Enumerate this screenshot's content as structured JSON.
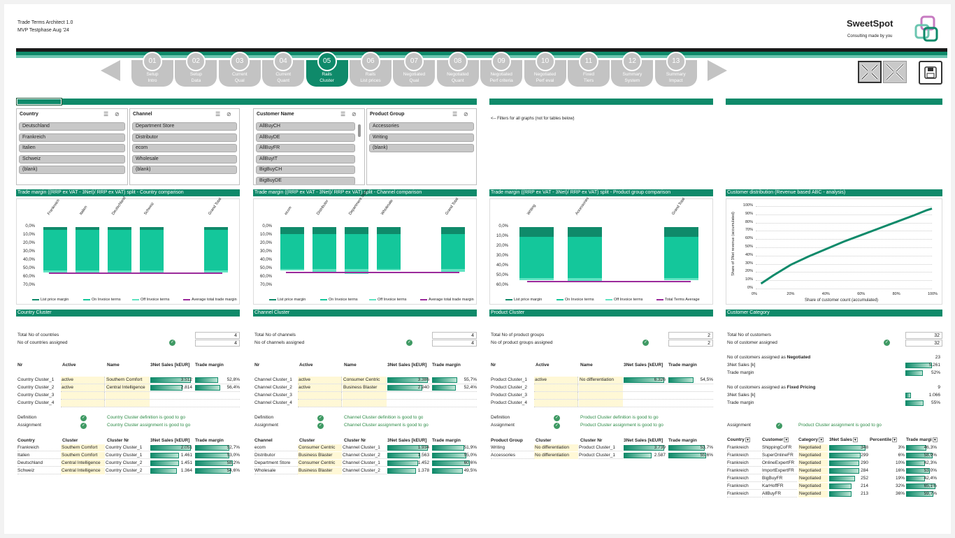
{
  "app": {
    "title": "Trade Terms Architect 1.0",
    "subtitle": "MVP Testphase Aug '24"
  },
  "brand": {
    "name": "SweetSpot",
    "tagline": "Consulting made by you",
    "accent": "#0f8a6a"
  },
  "steps": [
    {
      "num": "01",
      "label": "Setup\nIntro"
    },
    {
      "num": "02",
      "label": "Setup\nData"
    },
    {
      "num": "03",
      "label": "Current\nQual"
    },
    {
      "num": "04",
      "label": "Current\nQuant"
    },
    {
      "num": "05",
      "label": "Rails\nCluster",
      "active": true
    },
    {
      "num": "06",
      "label": "Rails\nList prices"
    },
    {
      "num": "07",
      "label": "Negotiated\nQual"
    },
    {
      "num": "08",
      "label": "Negotiated\nQuant"
    },
    {
      "num": "09",
      "label": "Negotiated\nPerf criteria"
    },
    {
      "num": "10",
      "label": "Negotiated\nPerf eval"
    },
    {
      "num": "11",
      "label": "Fixed\nTiers"
    },
    {
      "num": "12",
      "label": "Summary\nSystem"
    },
    {
      "num": "13",
      "label": "Summary\nImpact"
    }
  ],
  "slicers": {
    "country": {
      "title": "Country",
      "items": [
        "Deutschland",
        "Frankreich",
        "Italien",
        "Schweiz",
        "(blank)"
      ]
    },
    "channel": {
      "title": "Channel",
      "items": [
        "Department Store",
        "Distributor",
        "ecom",
        "Wholesale",
        "(blank)"
      ]
    },
    "customer": {
      "title": "Customer Name",
      "items": [
        "AllBuyCH",
        "AllBuyDE",
        "AllBuyFR",
        "AllBuyIT",
        "BigBuyCH",
        "BigBuyDE"
      ]
    },
    "product": {
      "title": "Product Group",
      "items": [
        "Accessories",
        "Writing",
        "(blank)"
      ]
    }
  },
  "filter_note": "<-- Filters for all graphs (not for tables below)",
  "chart_titles": {
    "country": "Trade margin ((RRP ex VAT - 3Net)/ RRP ex VAT) split - Country comparison",
    "channel": "Trade margin ((RRP ex VAT - 3Net)/ RRP ex VAT) split - Channel comparison",
    "product": "Trade margin ((RRP ex VAT - 3Net)/ RRP ex VAT) split - Product group comparison",
    "customer": "Customer distribution (Revenue based ABC - analysis)"
  },
  "chart_data": [
    {
      "type": "bar",
      "name": "country",
      "categories": [
        "Frankreich",
        "Italien",
        "Deutschland",
        "Schweiz",
        "",
        "Grand Total"
      ],
      "y_ticks": [
        "0,0%",
        "10,0%",
        "20,0%",
        "30,0%",
        "40,0%",
        "50,0%",
        "60,0%",
        "70,0%"
      ],
      "ylim": [
        0,
        70
      ],
      "series": [
        {
          "name": "List price margin",
          "values": [
            3,
            3,
            3,
            3,
            null,
            3
          ]
        },
        {
          "name": "On Invoice terms",
          "values": [
            49,
            49,
            49,
            49,
            null,
            49
          ]
        },
        {
          "name": "Off Invoice terms",
          "values": [
            2,
            2,
            4,
            2,
            null,
            2
          ]
        },
        {
          "name": "Average total trade margin",
          "values": [
            54,
            54,
            54,
            54,
            null,
            54
          ]
        }
      ],
      "legend": [
        "List price margin",
        "On Invoice terms",
        "Off Invoice terms",
        "Average total trade margin"
      ]
    },
    {
      "type": "bar",
      "name": "channel",
      "categories": [
        "ecom",
        "Distributor",
        "Department Store",
        "Wholesale",
        "",
        "Grand Total"
      ],
      "y_ticks": [
        "0,0%",
        "10,0%",
        "20,0%",
        "30,0%",
        "40,0%",
        "50,0%",
        "60,0%",
        "70,0%"
      ],
      "ylim": [
        0,
        70
      ],
      "series": [
        {
          "name": "List price margin",
          "values": [
            8,
            8,
            8,
            8,
            null,
            8
          ]
        },
        {
          "name": "On Invoice terms",
          "values": [
            42,
            42,
            42,
            42,
            null,
            42
          ]
        },
        {
          "name": "Off Invoice terms",
          "values": [
            2,
            4,
            6,
            2,
            null,
            3
          ]
        },
        {
          "name": "Average total trade margin",
          "values": [
            53,
            53,
            53,
            53,
            null,
            53
          ]
        }
      ],
      "legend": [
        "List price margin",
        "On Invoice terms",
        "Off Invoice terms",
        "Average total trade margin"
      ]
    },
    {
      "type": "bar",
      "name": "product",
      "categories": [
        "Writing",
        "Accessories",
        "",
        "Grand Total"
      ],
      "y_ticks": [
        "0,0%",
        "10,0%",
        "20,0%",
        "30,0%",
        "40,0%",
        "50,0%",
        "60,0%"
      ],
      "ylim": [
        0,
        60
      ],
      "series": [
        {
          "name": "List price margin",
          "values": [
            10,
            10,
            null,
            10
          ]
        },
        {
          "name": "On Invoice terms",
          "values": [
            42,
            42,
            null,
            42
          ]
        },
        {
          "name": "Off Invoice terms",
          "values": [
            2,
            3,
            null,
            2
          ]
        },
        {
          "name": "Total Terms Average",
          "values": [
            55,
            55,
            null,
            55
          ]
        }
      ],
      "legend": [
        "List price margin",
        "On Invoice terms",
        "Off Invoice terms",
        "Total Terms Average"
      ]
    },
    {
      "type": "line",
      "name": "customer",
      "x_ticks": [
        "0%",
        "20%",
        "40%",
        "60%",
        "80%",
        "100%"
      ],
      "y_ticks": [
        "0%",
        "10%",
        "20%",
        "30%",
        "40%",
        "50%",
        "60%",
        "70%",
        "80%",
        "90%",
        "100%"
      ],
      "xlabel": "Share of customer count (accumulated)",
      "ylabel": "Share of 3Net revenue (accumulated)",
      "x": [
        3,
        10,
        20,
        30,
        40,
        50,
        60,
        70,
        80,
        90,
        97,
        100
      ],
      "y": [
        6,
        16,
        29,
        39,
        48,
        57,
        65,
        73,
        81,
        89,
        95,
        97
      ]
    }
  ],
  "sections": {
    "country": {
      "title": "Country Cluster",
      "total_label": "Total No of countries",
      "total": "4",
      "assigned_label": "No of countries assigned",
      "assigned": "4",
      "headers": [
        "Nr",
        "Active",
        "Name",
        "3Net Sales [kEUR]",
        "Trade margin"
      ],
      "rows": [
        {
          "nr": "Country Cluster_1",
          "active": "active",
          "name": "Southern Comfort",
          "sales": "3.512",
          "sales_frac": 1.0,
          "margin": "52,8%",
          "margin_frac": 0.93
        },
        {
          "nr": "Country Cluster_2",
          "active": "active",
          "name": "Central Intelligence",
          "sales": "2.814",
          "sales_frac": 0.8,
          "margin": "56,4%",
          "margin_frac": 1.0
        },
        {
          "nr": "Country Cluster_3",
          "active": "",
          "name": "",
          "sales": "",
          "margin": ""
        },
        {
          "nr": "Country Cluster_4",
          "active": "",
          "name": "",
          "sales": "",
          "margin": ""
        }
      ],
      "def_label": "Definition",
      "def_msg": "Country Cluster definition is good to go",
      "asg_label": "Assignment",
      "asg_msg": "Country Cluster assignment is good to go",
      "map_headers": [
        "Country",
        "Cluster",
        "Cluster Nr",
        "3Net Sales [kEUR]",
        "Trade margin"
      ],
      "map_rows": [
        {
          "a": "Frankreich",
          "b": "Southern Comfort",
          "c": "Country Cluster_1",
          "s": "2.051",
          "sf": 1.0,
          "m": "52,7%",
          "mf": 0.9
        },
        {
          "a": "Italien",
          "b": "Southern Comfort",
          "c": "Country Cluster_1",
          "s": "1.461",
          "sf": 0.71,
          "m": "53,0%",
          "mf": 0.91
        },
        {
          "a": "Deutschland",
          "b": "Central Intelligence",
          "c": "Country Cluster_2",
          "s": "1.451",
          "sf": 0.7,
          "m": "58,2%",
          "mf": 1.0
        },
        {
          "a": "Schweiz",
          "b": "Central Intelligence",
          "c": "Country Cluster_2",
          "s": "1.364",
          "sf": 0.66,
          "m": "54,6%",
          "mf": 0.94
        }
      ]
    },
    "channel": {
      "title": "Channel Cluster",
      "total_label": "Total No of channels",
      "total": "4",
      "assigned_label": "No of channels assigned",
      "assigned": "4",
      "headers": [
        "Nr",
        "Active",
        "Name",
        "3Net Sales [kEUR]",
        "Trade margin"
      ],
      "rows": [
        {
          "nr": "Channel Cluster_1",
          "active": "active",
          "name": "Consumer Centric",
          "sales": "3.386",
          "sales_frac": 1.0,
          "margin": "55,7%",
          "margin_frac": 1.0
        },
        {
          "nr": "Channel Cluster_2",
          "active": "active",
          "name": "Business Blaster",
          "sales": "2.940",
          "sales_frac": 0.87,
          "margin": "52,4%",
          "margin_frac": 0.94
        },
        {
          "nr": "Channel Cluster_3",
          "active": "",
          "name": "",
          "sales": "",
          "margin": ""
        },
        {
          "nr": "Channel Cluster_4",
          "active": "",
          "name": "",
          "sales": "",
          "margin": ""
        }
      ],
      "def_label": "Definition",
      "def_msg": "Channel Cluster definition is good to go",
      "asg_label": "Assignment",
      "asg_msg": "Channel Cluster assignment is good to go",
      "map_headers": [
        "Channel",
        "Cluster",
        "Cluster Nr",
        "3Net Sales [kEUR]",
        "Trade margin"
      ],
      "map_rows": [
        {
          "a": "ecom",
          "b": "Consumer Centric",
          "c": "Channel Cluster_1",
          "s": "1.934",
          "sf": 1.0,
          "m": "51,9%",
          "mf": 0.86
        },
        {
          "a": "Distributor",
          "b": "Business Blaster",
          "c": "Channel Cluster_2",
          "s": "1.563",
          "sf": 0.81,
          "m": "55,0%",
          "mf": 0.91
        },
        {
          "a": "Department Store",
          "b": "Consumer Centric",
          "c": "Channel Cluster_1",
          "s": "1.452",
          "sf": 0.75,
          "m": "60,6%",
          "mf": 1.0
        },
        {
          "a": "Wholesale",
          "b": "Business Blaster",
          "c": "Channel Cluster_2",
          "s": "1.378",
          "sf": 0.71,
          "m": "49,5%",
          "mf": 0.82
        }
      ]
    },
    "product": {
      "title": "Product Cluster",
      "total_label": "Total No of product groups",
      "total": "2",
      "assigned_label": "No of product groups assigned",
      "assigned": "2",
      "headers": [
        "Nr",
        "Active",
        "Name",
        "3Net Sales [kEUR]",
        "Trade margin"
      ],
      "rows": [
        {
          "nr": "Product Cluster_1",
          "active": "active",
          "name": "No differentiation",
          "sales": "6.326",
          "sales_frac": 1.0,
          "margin": "54,5%",
          "margin_frac": 1.0
        },
        {
          "nr": "Product Cluster_2",
          "active": "",
          "name": "",
          "sales": "",
          "margin": ""
        },
        {
          "nr": "Product Cluster_3",
          "active": "",
          "name": "",
          "sales": "",
          "margin": ""
        },
        {
          "nr": "Product Cluster_4",
          "active": "",
          "name": "",
          "sales": "",
          "margin": ""
        }
      ],
      "def_label": "Definition",
      "def_msg": "Product Cluster definition is good to go",
      "asg_label": "Assignment",
      "asg_msg": "Product Cluster assignment is good to go",
      "map_headers": [
        "Product Group",
        "Cluster",
        "Cluster Nr",
        "3Net Sales [kEUR]",
        "Trade margin"
      ],
      "map_rows": [
        {
          "a": "Writing",
          "b": "No differentiation",
          "c": "Product Cluster_1",
          "s": "3.739",
          "sf": 1.0,
          "m": "53,7%",
          "mf": 0.97
        },
        {
          "a": "Accessories",
          "b": "No differentiation",
          "c": "Product Cluster_1",
          "s": "2.587",
          "sf": 0.69,
          "m": "55,6%",
          "mf": 1.0
        }
      ]
    },
    "customer": {
      "title": "Customer Category",
      "total_label": "Total No of customers",
      "total": "32",
      "assigned_label": "No of customer assigned",
      "assigned": "32",
      "neg_label": "No of customers assigned as ",
      "neg_bold": "Negotiated",
      "neg_count": "23",
      "neg_sales_label": "3Net Sales [k]",
      "neg_sales": "5.261",
      "neg_sales_frac": 1.0,
      "neg_margin_label": "Trade margin",
      "neg_margin": "52%",
      "neg_margin_frac": 0.52,
      "fix_label": "No of customers assigned as ",
      "fix_bold": "Fixed Pricing",
      "fix_count": "9",
      "fix_sales_label": "3Net Sales [k]",
      "fix_sales": "1.066",
      "fix_sales_frac": 0.2,
      "fix_margin_label": "Trade margin",
      "fix_margin": "55%",
      "fix_margin_frac": 0.55,
      "asg_label": "Assignment",
      "asg_msg": "Product Cluster assignment is good to go",
      "list_headers": [
        "Country",
        "Customer",
        "Category",
        "3Net Sales",
        "Percentile",
        "Trade margi"
      ],
      "list_rows": [
        {
          "a": "Frankreich",
          "b": "ShippingCoFR",
          "c": "Negotiated",
          "s": "348",
          "sf": 1.0,
          "p": "3%",
          "m": "46,3%",
          "mf": 0.7
        },
        {
          "a": "Frankreich",
          "b": "SuperOnlineFR",
          "c": "Negotiated",
          "s": "299",
          "sf": 0.86,
          "p": "6%",
          "m": "58,9%",
          "mf": 0.9
        },
        {
          "a": "Frankreich",
          "b": "OnlineExpertFR",
          "c": "Negotiated",
          "s": "290",
          "sf": 0.83,
          "p": "10%",
          "m": "42,3%",
          "mf": 0.64
        },
        {
          "a": "Frankreich",
          "b": "ImportExpertFR",
          "c": "Negotiated",
          "s": "284",
          "sf": 0.82,
          "p": "16%",
          "m": "53,0%",
          "mf": 0.8
        },
        {
          "a": "Frankreich",
          "b": "BigBuyFR",
          "c": "Negotiated",
          "s": "252",
          "sf": 0.72,
          "p": "19%",
          "m": "42,4%",
          "mf": 0.64
        },
        {
          "a": "Frankreich",
          "b": "KarHoffFR",
          "c": "Negotiated",
          "s": "214",
          "sf": 0.61,
          "p": "32%",
          "m": "65,1%",
          "mf": 1.0
        },
        {
          "a": "Frankreich",
          "b": "AllBuyFR",
          "c": "Negotiated",
          "s": "213",
          "sf": 0.61,
          "p": "36%",
          "m": "59,7%",
          "mf": 0.92
        }
      ]
    }
  }
}
